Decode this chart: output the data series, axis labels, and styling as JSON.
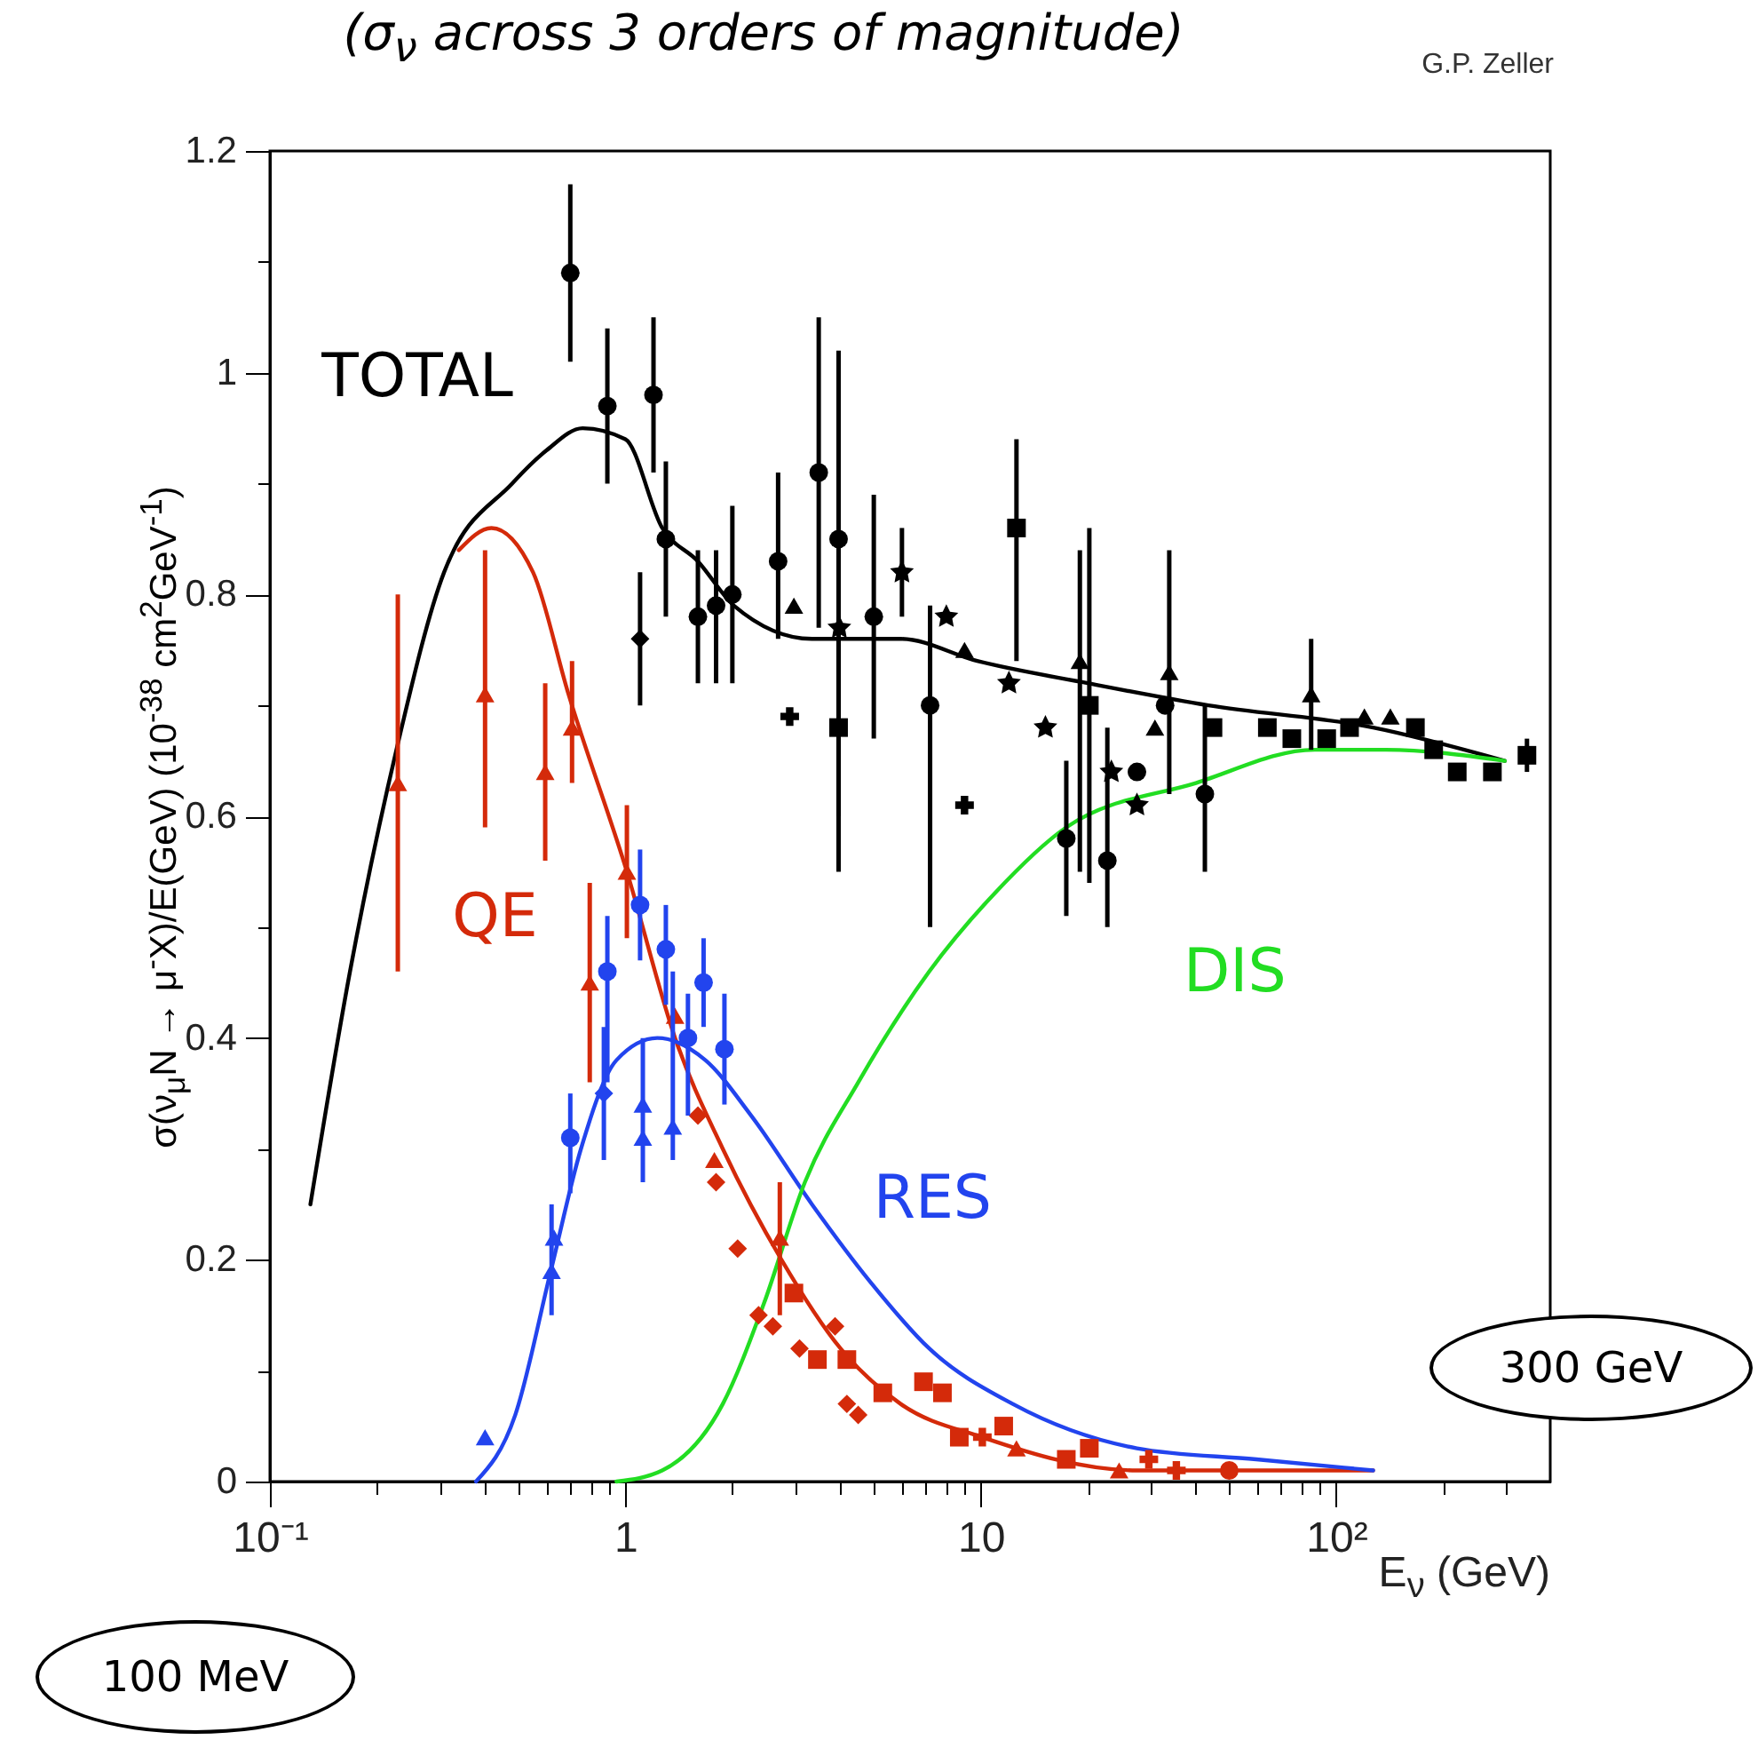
{
  "chart_data": {
    "type": "line",
    "title": "(σ$_{ν}$ across 3 orders of magnitude)",
    "xlabel": "E$_{ν}$ (GeV)",
    "ylabel": "σ(ν$_{μ}$N → μ$^{-}$X)/E(GeV)  (10$^{-38}$ cm$^{2}$GeV$^{-1}$)",
    "annotations": [
      "G.P. Zeller",
      "100 MeV",
      "300 GeV"
    ],
    "log": "x",
    "grid": false,
    "line_style": "solid",
    "xlim": [
      0.1,
      400
    ],
    "ylim": [
      0,
      1.2
    ],
    "xticks": [
      {
        "value": 0.1,
        "label": "10⁻¹"
      },
      {
        "value": 0.2,
        "label": null
      },
      {
        "value": 0.3,
        "label": null
      },
      {
        "value": 0.4,
        "label": null
      },
      {
        "value": 0.5,
        "label": null
      },
      {
        "value": 0.6,
        "label": null
      },
      {
        "value": 0.7,
        "label": null
      },
      {
        "value": 0.8,
        "label": null
      },
      {
        "value": 0.9,
        "label": null
      },
      1,
      {
        "value": 2,
        "label": null
      },
      {
        "value": 3,
        "label": null
      },
      {
        "value": 4,
        "label": null
      },
      {
        "value": 5,
        "label": null
      },
      {
        "value": 6,
        "label": null
      },
      {
        "value": 7,
        "label": null
      },
      {
        "value": 8,
        "label": null
      },
      {
        "value": 9,
        "label": null
      },
      10,
      {
        "value": 20,
        "label": null
      },
      {
        "value": 30,
        "label": null
      },
      {
        "value": 40,
        "label": null
      },
      {
        "value": 50,
        "label": null
      },
      {
        "value": 60,
        "label": null
      },
      {
        "value": 70,
        "label": null
      },
      {
        "value": 80,
        "label": null
      },
      {
        "value": 90,
        "label": null
      },
      {
        "value": 100,
        "label": "10²"
      },
      {
        "value": 200,
        "label": null
      },
      {
        "value": 300,
        "label": null
      }
    ],
    "yticks": [
      0,
      {
        "value": 0.1,
        "label": null
      },
      0.2,
      {
        "value": 0.3,
        "label": null
      },
      0.4,
      {
        "value": 0.5,
        "label": null
      },
      0.6,
      {
        "value": 0.7,
        "label": null
      },
      0.8,
      {
        "value": 0.9,
        "label": null
      },
      1,
      {
        "value": 1.1,
        "label": null
      },
      1.2
    ],
    "series": [
      {
        "name": "QE",
        "color": "#d42a0a",
        "x": [
          0.34,
          0.42,
          0.55,
          0.692,
          1.01,
          1.38,
          1.88,
          2.75,
          4.03,
          5.95,
          10.1,
          27.5,
          127
        ],
        "values": [
          0.84,
          0.86,
          0.82,
          0.71,
          0.55,
          0.4,
          0.3,
          0.2,
          0.12,
          0.07,
          0.04,
          0.01,
          0.01
        ]
      },
      {
        "name": "TOTAL",
        "color": "#000000",
        "x": [
          0.13,
          0.168,
          0.227,
          0.309,
          0.48,
          0.6,
          0.758,
          1.0,
          1.27,
          1.6,
          2.02,
          3.35,
          5.95,
          9.77,
          20,
          43.7,
          127,
          298
        ],
        "values": [
          0.25,
          0.46,
          0.66,
          0.82,
          0.9,
          0.93,
          0.95,
          0.94,
          0.86,
          0.83,
          0.79,
          0.76,
          0.76,
          0.74,
          0.72,
          0.7,
          0.68,
          0.65
        ]
      },
      {
        "name": "RES",
        "color": "#2244ee",
        "x": [
          0.38,
          0.49,
          0.617,
          0.75,
          0.944,
          1.23,
          1.68,
          2.26,
          3.35,
          4.89,
          7.16,
          12.3,
          27.5,
          59.6,
          127
        ],
        "values": [
          0,
          0.06,
          0.19,
          0.3,
          0.38,
          0.4,
          0.38,
          0.33,
          0.25,
          0.18,
          0.12,
          0.07,
          0.03,
          0.02,
          0.01
        ]
      },
      {
        "name": "DIS",
        "color": "#22dd22",
        "x": [
          0.944,
          1.27,
          1.88,
          2.45,
          3.2,
          4.52,
          7.16,
          10.9,
          17.4,
          40.3,
          87,
          138,
          298
        ],
        "values": [
          0,
          0.01,
          0.07,
          0.16,
          0.27,
          0.36,
          0.46,
          0.53,
          0.59,
          0.63,
          0.66,
          0.66,
          0.65
        ]
      },
      {
        "type": "scatter",
        "marker": "circle",
        "color": "#000000",
        "x": [
          0.7,
          0.89,
          1.2,
          1.3,
          1.6,
          1.8,
          2.0,
          2.69,
          3.5,
          3.98,
          5.0,
          7.2,
          17.4,
          22.7,
          27.5,
          33,
          42.7
        ],
        "values": [
          1.09,
          0.97,
          0.98,
          0.85,
          0.78,
          0.79,
          0.8,
          0.83,
          0.91,
          0.85,
          0.78,
          0.7,
          0.58,
          0.56,
          0.64,
          0.7,
          0.62
        ],
        "errors": [
          [
            1.01,
            1.17
          ],
          [
            0.9,
            1.04
          ],
          [
            0.91,
            1.05
          ],
          [
            0.78,
            0.92
          ],
          [
            0.72,
            0.84
          ],
          [
            0.72,
            0.84
          ],
          [
            0.72,
            0.88
          ],
          [
            0.76,
            0.91
          ],
          [
            0.77,
            1.05
          ],
          [
            0.6,
            1.02
          ],
          [
            0.67,
            0.89
          ],
          [
            0.5,
            0.79
          ],
          [
            0.51,
            0.65
          ],
          [
            0.5,
            0.68
          ],
          null,
          null,
          [
            0.55,
            0.7
          ]
        ]
      },
      {
        "type": "scatter",
        "marker": "square",
        "color": "#000000",
        "x": [
          3.98,
          12.6,
          20.2,
          45,
          64,
          75,
          94,
          109,
          167,
          188,
          219,
          275,
          344
        ],
        "values": [
          0.68,
          0.86,
          0.7,
          0.68,
          0.68,
          0.67,
          0.67,
          0.68,
          0.68,
          0.66,
          0.64,
          0.64,
          0.655
        ],
        "errors": [
          [
            0.55,
            0.78
          ],
          [
            0.74,
            0.94
          ],
          [
            0.54,
            0.86
          ],
          null,
          null,
          null,
          null,
          null,
          null,
          null,
          null,
          null,
          [
            0.64,
            0.67
          ]
        ]
      },
      {
        "type": "scatter",
        "marker": "star",
        "color": "#000000",
        "x": [
          4.0,
          6.0,
          8.0,
          12.0,
          15.2,
          23.3,
          27.5
        ],
        "values": [
          0.77,
          0.82,
          0.78,
          0.72,
          0.68,
          0.64,
          0.61
        ],
        "errors": [
          null,
          [
            0.78,
            0.86
          ],
          null,
          null,
          null,
          null,
          null
        ]
      },
      {
        "type": "scatter",
        "marker": "triangle",
        "color": "#000000",
        "x": [
          2.98,
          9.0,
          19,
          30.9,
          33.9,
          85,
          120,
          142
        ],
        "values": [
          0.79,
          0.75,
          0.74,
          0.68,
          0.73,
          0.71,
          0.69,
          0.69
        ],
        "errors": [
          null,
          null,
          [
            0.55,
            0.84
          ],
          null,
          [
            0.62,
            0.84
          ],
          [
            0.66,
            0.76
          ],
          null,
          null
        ]
      },
      {
        "type": "scatter",
        "marker": "diamond",
        "color": "#000000",
        "x": [
          1.1
        ],
        "values": [
          0.76
        ],
        "errors": [
          [
            0.7,
            0.82
          ]
        ]
      },
      {
        "type": "scatter",
        "marker": "cross",
        "color": "#000000",
        "x": [
          2.9,
          9.0
        ],
        "values": [
          0.69,
          0.61
        ]
      },
      {
        "type": "scatter",
        "marker": "triangle",
        "color": "#d42a0a",
        "x": [
          0.229,
          0.403,
          0.595,
          0.708,
          0.794,
          1.01,
          1.38,
          1.78,
          2.72,
          12.6,
          24.5
        ],
        "values": [
          0.63,
          0.71,
          0.64,
          0.68,
          0.45,
          0.55,
          0.42,
          0.29,
          0.22,
          0.03,
          0.01
        ],
        "errors": [
          [
            0.46,
            0.8
          ],
          [
            0.59,
            0.84
          ],
          [
            0.56,
            0.72
          ],
          [
            0.63,
            0.74
          ],
          [
            0.36,
            0.54
          ],
          [
            0.49,
            0.61
          ],
          null,
          null,
          [
            0.15,
            0.27
          ],
          null,
          null
        ]
      },
      {
        "type": "scatter",
        "marker": "diamond",
        "color": "#d42a0a",
        "x": [
          1.6,
          1.8,
          2.07,
          2.37,
          2.6,
          3.09,
          3.89,
          4.2,
          4.52
        ],
        "values": [
          0.33,
          0.27,
          0.21,
          0.15,
          0.14,
          0.12,
          0.14,
          0.07,
          0.06
        ]
      },
      {
        "type": "scatter",
        "marker": "square",
        "color": "#d42a0a",
        "x": [
          2.98,
          3.47,
          4.2,
          5.3,
          6.9,
          7.8,
          8.7,
          11.6,
          17.4,
          20.2
        ],
        "values": [
          0.17,
          0.11,
          0.11,
          0.08,
          0.09,
          0.08,
          0.04,
          0.05,
          0.02,
          0.03
        ]
      },
      {
        "type": "scatter",
        "marker": "cross",
        "color": "#d42a0a",
        "x": [
          10.1,
          29.7,
          35.5
        ],
        "values": [
          0.04,
          0.02,
          0.01
        ]
      },
      {
        "type": "scatter",
        "marker": "circle",
        "color": "#d42a0a",
        "x": [
          50
        ],
        "values": [
          0.01
        ]
      },
      {
        "type": "scatter",
        "marker": "circle",
        "color": "#2244ee",
        "x": [
          0.7,
          0.89,
          1.1,
          1.3,
          1.5,
          1.66,
          1.9
        ],
        "values": [
          0.31,
          0.46,
          0.52,
          0.48,
          0.4,
          0.45,
          0.39
        ],
        "errors": [
          [
            0.26,
            0.35
          ],
          [
            0.36,
            0.51
          ],
          [
            0.47,
            0.57
          ],
          [
            0.43,
            0.52
          ],
          [
            0.33,
            0.44
          ],
          [
            0.41,
            0.49
          ],
          [
            0.34,
            0.44
          ]
        ]
      },
      {
        "type": "scatter",
        "marker": "triangle",
        "color": "#2244ee",
        "x": [
          0.403,
          0.62,
          0.63,
          1.12,
          1.12,
          1.36
        ],
        "values": [
          0.04,
          0.19,
          0.22,
          0.31,
          0.34,
          0.32
        ],
        "errors": [
          null,
          [
            0.15,
            0.25
          ],
          null,
          [
            0.27,
            0.4
          ],
          null,
          [
            0.29,
            0.46
          ]
        ]
      },
      {
        "type": "scatter",
        "marker": "diamond",
        "color": "#2244ee",
        "x": [
          0.87
        ],
        "values": [
          0.35
        ],
        "errors": [
          [
            0.29,
            0.41
          ]
        ]
      }
    ]
  }
}
